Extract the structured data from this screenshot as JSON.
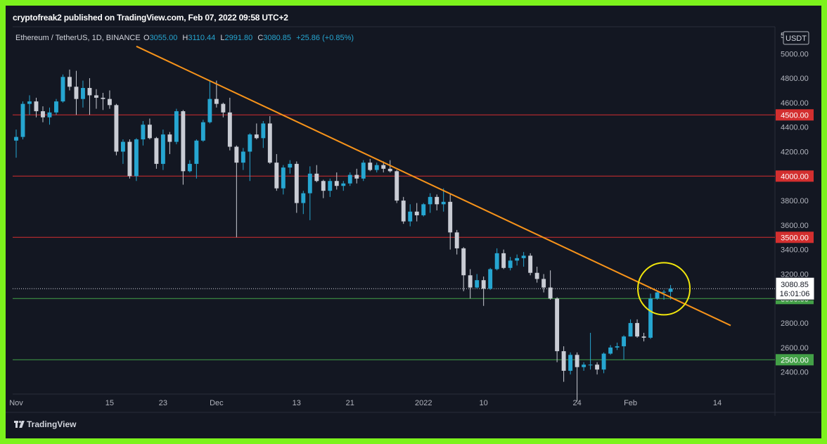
{
  "header": {
    "publisher_line": "cryptofreak2 published on TradingView.com, Feb 07, 2022 09:58 UTC+2"
  },
  "footer": {
    "logo_text": "TradingView"
  },
  "colors": {
    "bull": "#26a6d1",
    "bear": "#c9ccd4",
    "resistance": "#d32f2f",
    "support": "#43a047",
    "trendline": "#f7931a",
    "highlight": "#f1e60c",
    "background": "#131722",
    "frame": "#7cf21c"
  },
  "chart_data": {
    "type": "candlestick",
    "title": "",
    "symbol_label": "Ethereum / TetherUS, 1D, BINANCE",
    "ohlc": {
      "o_label": "O",
      "o": "3055.00",
      "h_label": "H",
      "h": "3110.44",
      "l_label": "L",
      "l": "2991.80",
      "c_label": "C",
      "c": "3080.85",
      "change": "+25.86 (+0.85%)"
    },
    "currency_label": "USDT",
    "price_top_digit": "5",
    "ylim": [
      2220,
      5220
    ],
    "y_ticks": [
      "5000.00",
      "4800.00",
      "4600.00",
      "4400.00",
      "4200.00",
      "3800.00",
      "3600.00",
      "3400.00",
      "3200.00",
      "2800.00",
      "2600.00",
      "2400.00"
    ],
    "x_ticks": [
      {
        "label": "Nov",
        "date": "2021-11-01"
      },
      {
        "label": "15",
        "date": "2021-11-15"
      },
      {
        "label": "23",
        "date": "2021-11-23"
      },
      {
        "label": "Dec",
        "date": "2021-12-01"
      },
      {
        "label": "13",
        "date": "2021-12-13"
      },
      {
        "label": "21",
        "date": "2021-12-21"
      },
      {
        "label": "2022",
        "date": "2022-01-01"
      },
      {
        "label": "10",
        "date": "2022-01-10"
      },
      {
        "label": "24",
        "date": "2022-01-24"
      },
      {
        "label": "Feb",
        "date": "2022-02-01"
      },
      {
        "label": "14",
        "date": "2022-02-14"
      }
    ],
    "x_range": [
      "2021-11-01",
      "2022-02-18"
    ],
    "horizontal_levels": [
      {
        "price": 4500,
        "label": "4500.00",
        "kind": "resistance"
      },
      {
        "price": 4000,
        "label": "4000.00",
        "kind": "resistance"
      },
      {
        "price": 3500,
        "label": "3500.00",
        "kind": "resistance"
      },
      {
        "price": 3000,
        "label": "3000.00",
        "kind": "support"
      },
      {
        "price": 2500,
        "label": "2500.00",
        "kind": "support"
      }
    ],
    "current_price": {
      "price": 3080.85,
      "label": "3080.85",
      "countdown": "16:01:06"
    },
    "trendline": [
      {
        "date": "2021-11-19",
        "price": 5060
      },
      {
        "date": "2022-02-16",
        "price": 2780
      }
    ],
    "highlight_circle": {
      "date": "2022-02-06",
      "price": 3080
    },
    "candles": [
      {
        "d": "2021-11-01",
        "o": 4290,
        "h": 4380,
        "l": 4150,
        "c": 4320
      },
      {
        "d": "2021-11-02",
        "o": 4320,
        "h": 4610,
        "l": 4300,
        "c": 4590
      },
      {
        "d": "2021-11-03",
        "o": 4590,
        "h": 4660,
        "l": 4500,
        "c": 4610
      },
      {
        "d": "2021-11-04",
        "o": 4610,
        "h": 4640,
        "l": 4480,
        "c": 4530
      },
      {
        "d": "2021-11-05",
        "o": 4530,
        "h": 4570,
        "l": 4440,
        "c": 4480
      },
      {
        "d": "2021-11-06",
        "o": 4480,
        "h": 4560,
        "l": 4420,
        "c": 4520
      },
      {
        "d": "2021-11-07",
        "o": 4520,
        "h": 4630,
        "l": 4500,
        "c": 4610
      },
      {
        "d": "2021-11-08",
        "o": 4610,
        "h": 4830,
        "l": 4600,
        "c": 4810
      },
      {
        "d": "2021-11-09",
        "o": 4810,
        "h": 4870,
        "l": 4700,
        "c": 4730
      },
      {
        "d": "2021-11-10",
        "o": 4730,
        "h": 4860,
        "l": 4500,
        "c": 4630
      },
      {
        "d": "2021-11-11",
        "o": 4630,
        "h": 4780,
        "l": 4560,
        "c": 4720
      },
      {
        "d": "2021-11-12",
        "o": 4720,
        "h": 4800,
        "l": 4500,
        "c": 4660
      },
      {
        "d": "2021-11-13",
        "o": 4660,
        "h": 4710,
        "l": 4550,
        "c": 4640
      },
      {
        "d": "2021-11-14",
        "o": 4640,
        "h": 4680,
        "l": 4540,
        "c": 4630
      },
      {
        "d": "2021-11-15",
        "o": 4630,
        "h": 4700,
        "l": 4550,
        "c": 4580
      },
      {
        "d": "2021-11-16",
        "o": 4580,
        "h": 4590,
        "l": 4170,
        "c": 4200
      },
      {
        "d": "2021-11-17",
        "o": 4200,
        "h": 4300,
        "l": 4100,
        "c": 4280
      },
      {
        "d": "2021-11-18",
        "o": 4280,
        "h": 4300,
        "l": 3980,
        "c": 4000
      },
      {
        "d": "2021-11-19",
        "o": 4000,
        "h": 4310,
        "l": 3960,
        "c": 4300
      },
      {
        "d": "2021-11-20",
        "o": 4300,
        "h": 4450,
        "l": 4250,
        "c": 4420
      },
      {
        "d": "2021-11-21",
        "o": 4420,
        "h": 4470,
        "l": 4300,
        "c": 4310
      },
      {
        "d": "2021-11-22",
        "o": 4310,
        "h": 4320,
        "l": 4060,
        "c": 4100
      },
      {
        "d": "2021-11-23",
        "o": 4100,
        "h": 4380,
        "l": 4050,
        "c": 4340
      },
      {
        "d": "2021-11-24",
        "o": 4340,
        "h": 4360,
        "l": 4180,
        "c": 4280
      },
      {
        "d": "2021-11-25",
        "o": 4280,
        "h": 4550,
        "l": 4260,
        "c": 4530
      },
      {
        "d": "2021-11-26",
        "o": 4530,
        "h": 4540,
        "l": 3930,
        "c": 4040
      },
      {
        "d": "2021-11-27",
        "o": 4040,
        "h": 4130,
        "l": 4030,
        "c": 4100
      },
      {
        "d": "2021-11-28",
        "o": 4100,
        "h": 4300,
        "l": 3980,
        "c": 4290
      },
      {
        "d": "2021-11-29",
        "o": 4290,
        "h": 4460,
        "l": 4280,
        "c": 4440
      },
      {
        "d": "2021-11-30",
        "o": 4440,
        "h": 4780,
        "l": 4430,
        "c": 4630
      },
      {
        "d": "2021-12-01",
        "o": 4630,
        "h": 4780,
        "l": 4560,
        "c": 4590
      },
      {
        "d": "2021-12-02",
        "o": 4590,
        "h": 4600,
        "l": 4480,
        "c": 4520
      },
      {
        "d": "2021-12-03",
        "o": 4520,
        "h": 4640,
        "l": 4210,
        "c": 4240
      },
      {
        "d": "2021-12-04",
        "o": 4240,
        "h": 4250,
        "l": 3500,
        "c": 4110
      },
      {
        "d": "2021-12-05",
        "o": 4110,
        "h": 4230,
        "l": 4050,
        "c": 4200
      },
      {
        "d": "2021-12-06",
        "o": 4200,
        "h": 4350,
        "l": 3960,
        "c": 4340
      },
      {
        "d": "2021-12-07",
        "o": 4340,
        "h": 4430,
        "l": 4300,
        "c": 4310
      },
      {
        "d": "2021-12-08",
        "o": 4310,
        "h": 4450,
        "l": 4230,
        "c": 4430
      },
      {
        "d": "2021-12-09",
        "o": 4430,
        "h": 4490,
        "l": 4100,
        "c": 4110
      },
      {
        "d": "2021-12-10",
        "o": 4110,
        "h": 4180,
        "l": 3880,
        "c": 3900
      },
      {
        "d": "2021-12-11",
        "o": 3900,
        "h": 4090,
        "l": 3850,
        "c": 4070
      },
      {
        "d": "2021-12-12",
        "o": 4070,
        "h": 4130,
        "l": 4020,
        "c": 4100
      },
      {
        "d": "2021-12-13",
        "o": 4100,
        "h": 4120,
        "l": 3700,
        "c": 3780
      },
      {
        "d": "2021-12-14",
        "o": 3780,
        "h": 3880,
        "l": 3690,
        "c": 3860
      },
      {
        "d": "2021-12-15",
        "o": 3860,
        "h": 4080,
        "l": 3640,
        "c": 4020
      },
      {
        "d": "2021-12-16",
        "o": 4020,
        "h": 4090,
        "l": 3950,
        "c": 3960
      },
      {
        "d": "2021-12-17",
        "o": 3960,
        "h": 3970,
        "l": 3820,
        "c": 3880
      },
      {
        "d": "2021-12-18",
        "o": 3880,
        "h": 3980,
        "l": 3830,
        "c": 3960
      },
      {
        "d": "2021-12-19",
        "o": 3960,
        "h": 4030,
        "l": 3890,
        "c": 3920
      },
      {
        "d": "2021-12-20",
        "o": 3920,
        "h": 3960,
        "l": 3880,
        "c": 3940
      },
      {
        "d": "2021-12-21",
        "o": 3940,
        "h": 4030,
        "l": 3920,
        "c": 4010
      },
      {
        "d": "2021-12-22",
        "o": 4010,
        "h": 4060,
        "l": 3940,
        "c": 3980
      },
      {
        "d": "2021-12-23",
        "o": 3980,
        "h": 4130,
        "l": 3960,
        "c": 4110
      },
      {
        "d": "2021-12-24",
        "o": 4110,
        "h": 4140,
        "l": 4040,
        "c": 4050
      },
      {
        "d": "2021-12-25",
        "o": 4050,
        "h": 4110,
        "l": 4030,
        "c": 4090
      },
      {
        "d": "2021-12-26",
        "o": 4090,
        "h": 4120,
        "l": 4030,
        "c": 4060
      },
      {
        "d": "2021-12-27",
        "o": 4060,
        "h": 4130,
        "l": 4030,
        "c": 4040
      },
      {
        "d": "2021-12-28",
        "o": 4040,
        "h": 4050,
        "l": 3780,
        "c": 3800
      },
      {
        "d": "2021-12-29",
        "o": 3800,
        "h": 3830,
        "l": 3610,
        "c": 3630
      },
      {
        "d": "2021-12-30",
        "o": 3630,
        "h": 3770,
        "l": 3590,
        "c": 3710
      },
      {
        "d": "2021-12-31",
        "o": 3710,
        "h": 3780,
        "l": 3630,
        "c": 3680
      },
      {
        "d": "2022-01-01",
        "o": 3680,
        "h": 3780,
        "l": 3670,
        "c": 3770
      },
      {
        "d": "2022-01-02",
        "o": 3770,
        "h": 3860,
        "l": 3700,
        "c": 3830
      },
      {
        "d": "2022-01-03",
        "o": 3830,
        "h": 3850,
        "l": 3720,
        "c": 3770
      },
      {
        "d": "2022-01-04",
        "o": 3770,
        "h": 3900,
        "l": 3710,
        "c": 3790
      },
      {
        "d": "2022-01-05",
        "o": 3790,
        "h": 3850,
        "l": 3400,
        "c": 3540
      },
      {
        "d": "2022-01-06",
        "o": 3540,
        "h": 3560,
        "l": 3360,
        "c": 3410
      },
      {
        "d": "2022-01-07",
        "o": 3410,
        "h": 3420,
        "l": 3060,
        "c": 3190
      },
      {
        "d": "2022-01-08",
        "o": 3190,
        "h": 3240,
        "l": 3000,
        "c": 3090
      },
      {
        "d": "2022-01-09",
        "o": 3090,
        "h": 3200,
        "l": 3080,
        "c": 3150
      },
      {
        "d": "2022-01-10",
        "o": 3150,
        "h": 3180,
        "l": 2940,
        "c": 3080
      },
      {
        "d": "2022-01-11",
        "o": 3080,
        "h": 3250,
        "l": 3070,
        "c": 3240
      },
      {
        "d": "2022-01-12",
        "o": 3240,
        "h": 3410,
        "l": 3230,
        "c": 3370
      },
      {
        "d": "2022-01-13",
        "o": 3370,
        "h": 3400,
        "l": 3240,
        "c": 3250
      },
      {
        "d": "2022-01-14",
        "o": 3250,
        "h": 3340,
        "l": 3230,
        "c": 3310
      },
      {
        "d": "2022-01-15",
        "o": 3310,
        "h": 3360,
        "l": 3270,
        "c": 3330
      },
      {
        "d": "2022-01-16",
        "o": 3330,
        "h": 3380,
        "l": 3260,
        "c": 3350
      },
      {
        "d": "2022-01-17",
        "o": 3350,
        "h": 3370,
        "l": 3190,
        "c": 3210
      },
      {
        "d": "2022-01-18",
        "o": 3210,
        "h": 3260,
        "l": 3130,
        "c": 3160
      },
      {
        "d": "2022-01-19",
        "o": 3160,
        "h": 3200,
        "l": 3050,
        "c": 3090
      },
      {
        "d": "2022-01-20",
        "o": 3090,
        "h": 3230,
        "l": 2990,
        "c": 3000
      },
      {
        "d": "2022-01-21",
        "o": 3000,
        "h": 3010,
        "l": 2480,
        "c": 2570
      },
      {
        "d": "2022-01-22",
        "o": 2570,
        "h": 2610,
        "l": 2320,
        "c": 2410
      },
      {
        "d": "2022-01-23",
        "o": 2410,
        "h": 2560,
        "l": 2380,
        "c": 2540
      },
      {
        "d": "2022-01-24",
        "o": 2540,
        "h": 2560,
        "l": 2160,
        "c": 2440
      },
      {
        "d": "2022-01-25",
        "o": 2440,
        "h": 2480,
        "l": 2410,
        "c": 2460
      },
      {
        "d": "2022-01-26",
        "o": 2460,
        "h": 2720,
        "l": 2420,
        "c": 2460
      },
      {
        "d": "2022-01-27",
        "o": 2460,
        "h": 2480,
        "l": 2380,
        "c": 2420
      },
      {
        "d": "2022-01-28",
        "o": 2420,
        "h": 2560,
        "l": 2390,
        "c": 2550
      },
      {
        "d": "2022-01-29",
        "o": 2550,
        "h": 2620,
        "l": 2540,
        "c": 2600
      },
      {
        "d": "2022-01-30",
        "o": 2600,
        "h": 2640,
        "l": 2580,
        "c": 2610
      },
      {
        "d": "2022-01-31",
        "o": 2610,
        "h": 2700,
        "l": 2500,
        "c": 2690
      },
      {
        "d": "2022-02-01",
        "o": 2690,
        "h": 2830,
        "l": 2690,
        "c": 2800
      },
      {
        "d": "2022-02-02",
        "o": 2800,
        "h": 2830,
        "l": 2680,
        "c": 2690
      },
      {
        "d": "2022-02-03",
        "o": 2690,
        "h": 2720,
        "l": 2650,
        "c": 2680
      },
      {
        "d": "2022-02-04",
        "o": 2680,
        "h": 3040,
        "l": 2670,
        "c": 3000
      },
      {
        "d": "2022-02-05",
        "o": 3000,
        "h": 3060,
        "l": 2990,
        "c": 3050
      },
      {
        "d": "2022-02-06",
        "o": 3050,
        "h": 3070,
        "l": 2990,
        "c": 3055
      },
      {
        "d": "2022-02-07",
        "o": 3055,
        "h": 3110.44,
        "l": 2991.8,
        "c": 3080.85
      }
    ]
  }
}
